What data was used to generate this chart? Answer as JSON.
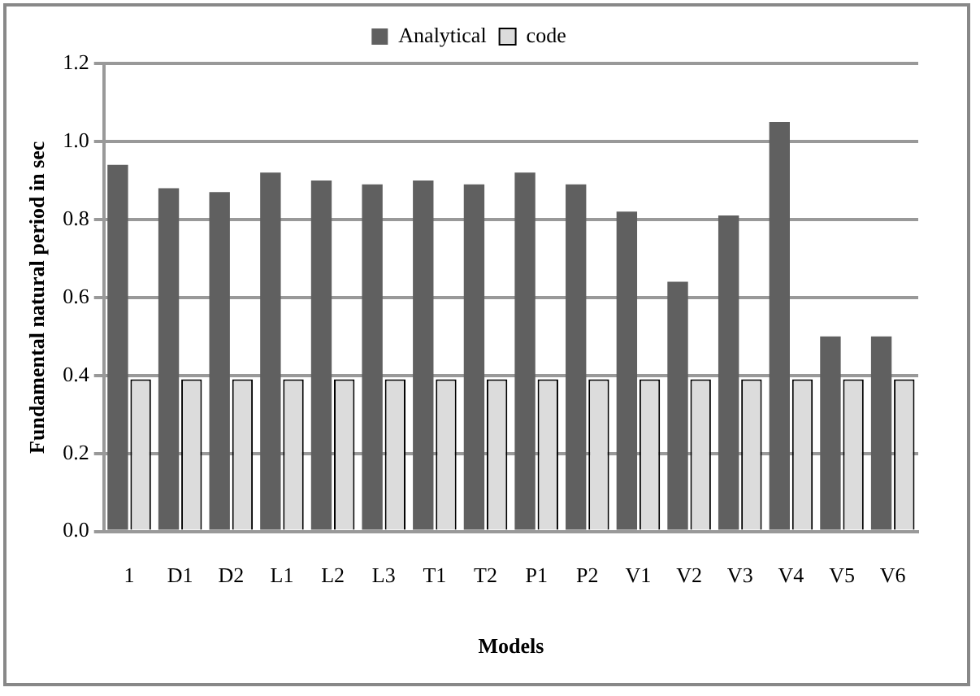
{
  "chart_data": {
    "type": "bar",
    "xlabel": "Models",
    "ylabel": "Fundamental natural period in sec",
    "categories": [
      "1",
      "D1",
      "D2",
      "L1",
      "L2",
      "L3",
      "T1",
      "T2",
      "P1",
      "P2",
      "V1",
      "V2",
      "V3",
      "V4",
      "V5",
      "V6"
    ],
    "series": [
      {
        "name": "Analytical",
        "color": "#606060",
        "values": [
          0.94,
          0.88,
          0.87,
          0.92,
          0.9,
          0.89,
          0.9,
          0.89,
          0.92,
          0.89,
          0.82,
          0.64,
          0.81,
          1.05,
          0.5,
          0.5
        ]
      },
      {
        "name": "code",
        "color": "#dcdcdc",
        "values": [
          0.39,
          0.39,
          0.39,
          0.39,
          0.39,
          0.39,
          0.39,
          0.39,
          0.39,
          0.39,
          0.39,
          0.39,
          0.39,
          0.39,
          0.39,
          0.39
        ]
      }
    ],
    "ylim": [
      0,
      1.2
    ],
    "yticks": [
      {
        "value": 0,
        "label": "0.0"
      },
      0.2,
      0.4,
      0.6,
      0.8,
      {
        "value": 1,
        "label": "1.0"
      },
      1.2
    ],
    "grid": "y",
    "legend": "top"
  }
}
